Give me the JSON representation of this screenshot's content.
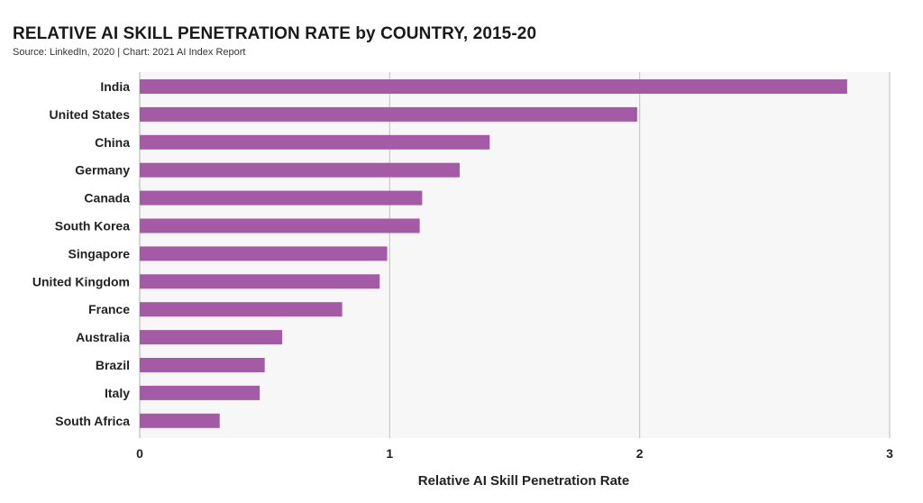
{
  "header": {
    "title": "RELATIVE AI SKILL PENETRATION RATE by COUNTRY, 2015-20",
    "subtitle": "Source: LinkedIn, 2020 | Chart: 2021 AI Index Report"
  },
  "colors": {
    "bar": "#a55aa5",
    "grid": "#c8c8c8",
    "plot_background": "#f8f7f7"
  },
  "chart_data": {
    "type": "bar",
    "orientation": "horizontal",
    "title": "RELATIVE AI SKILL PENETRATION RATE by COUNTRY, 2015-20",
    "subtitle": "Source: LinkedIn, 2020 | Chart: 2021 AI Index Report",
    "xlabel": "Relative AI Skill Penetration Rate",
    "ylabel": "",
    "xlim": [
      0,
      3
    ],
    "xticks": [
      0,
      1,
      2,
      3
    ],
    "grid": true,
    "categories": [
      "India",
      "United States",
      "China",
      "Germany",
      "Canada",
      "South Korea",
      "Singapore",
      "United Kingdom",
      "France",
      "Australia",
      "Brazil",
      "Italy",
      "South Africa"
    ],
    "values": [
      2.83,
      1.99,
      1.4,
      1.28,
      1.13,
      1.12,
      0.99,
      0.96,
      0.81,
      0.57,
      0.5,
      0.48,
      0.32
    ]
  }
}
